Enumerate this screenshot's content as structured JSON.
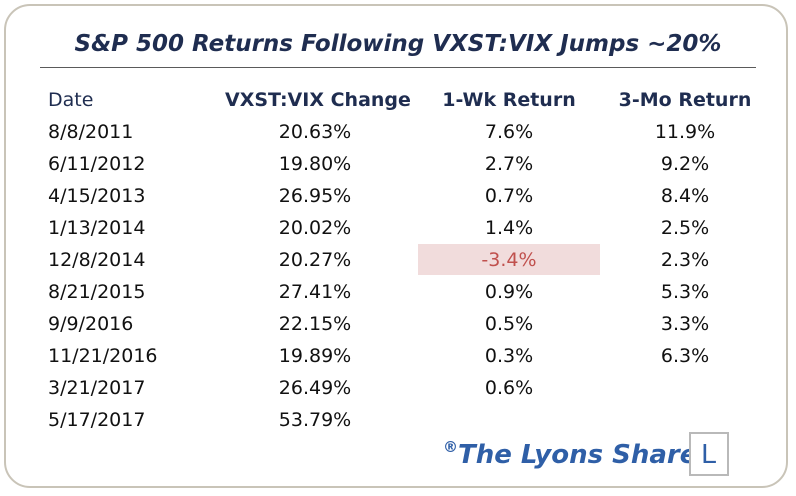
{
  "title": "S&P 500 Returns Following VXST:VIX Jumps ~20%",
  "columns": [
    "Date",
    "VXST:VIX Change",
    "1-Wk Return",
    "3-Mo Return"
  ],
  "rows": [
    {
      "date": "8/8/2011",
      "change": "20.63%",
      "wk": "7.6%",
      "mo": "11.9%"
    },
    {
      "date": "6/11/2012",
      "change": "19.80%",
      "wk": "2.7%",
      "mo": "9.2%"
    },
    {
      "date": "4/15/2013",
      "change": "26.95%",
      "wk": "0.7%",
      "mo": "8.4%"
    },
    {
      "date": "1/13/2014",
      "change": "20.02%",
      "wk": "1.4%",
      "mo": "2.5%"
    },
    {
      "date": "12/8/2014",
      "change": "20.27%",
      "wk": "-3.4%",
      "mo": "2.3%"
    },
    {
      "date": "8/21/2015",
      "change": "27.41%",
      "wk": "0.9%",
      "mo": "5.3%"
    },
    {
      "date": "9/9/2016",
      "change": "22.15%",
      "wk": "0.5%",
      "mo": "3.3%"
    },
    {
      "date": "11/21/2016",
      "change": "19.89%",
      "wk": "0.3%",
      "mo": "6.3%"
    },
    {
      "date": "3/21/2017",
      "change": "26.49%",
      "wk": "0.6%",
      "mo": ""
    },
    {
      "date": "5/17/2017",
      "change": "53.79%",
      "wk": "",
      "mo": ""
    }
  ],
  "highlight": {
    "row": 4,
    "column": "wk",
    "color": "#f1dcdc",
    "text_color": "#c0504d"
  },
  "brand": {
    "mark": "®",
    "name": "The Lyons Share",
    "logo_letter": "L"
  },
  "colors": {
    "title": "#1f2d50",
    "brand": "#2f5fa7",
    "frame": "#c9c4b8"
  }
}
